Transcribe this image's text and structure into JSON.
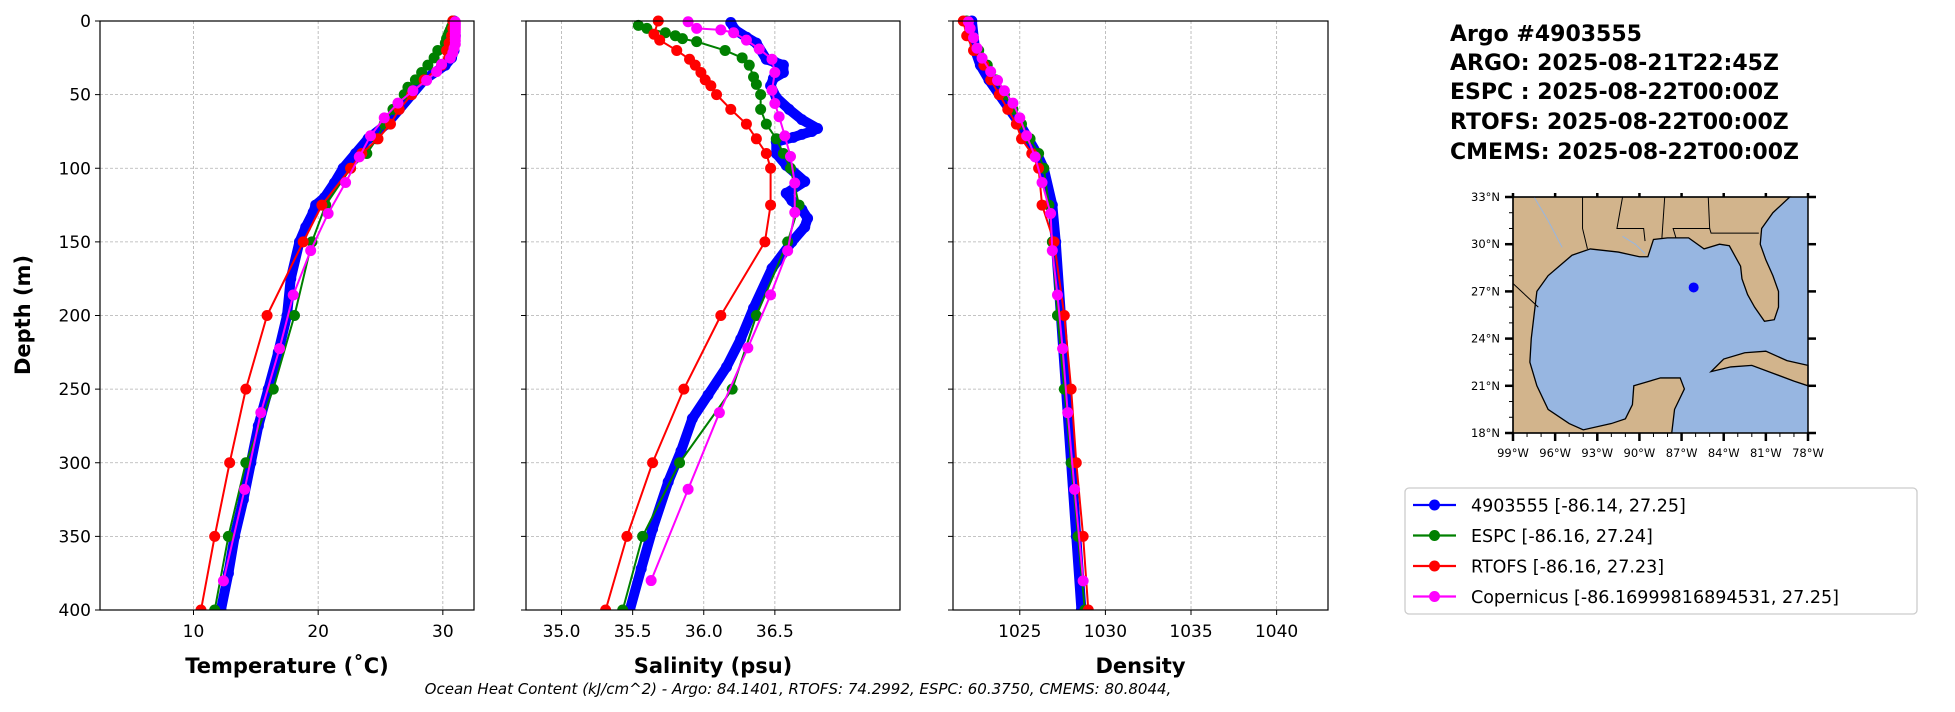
{
  "title_lines": [
    "Argo #4903555",
    "ARGO: 2025-08-21T22:45Z",
    "ESPC : 2025-08-22T00:00Z",
    "RTOFS: 2025-08-22T00:00Z",
    "CMEMS: 2025-08-22T00:00Z"
  ],
  "ylabel": "Depth (m)",
  "ohc_text": "Ocean Heat Content (kJ/cm^2) - Argo: 84.1401,  RTOFS: 74.2992,  ESPC: 60.3750,  CMEMS: 80.8044,",
  "legend": [
    {
      "label": "4903555 [-86.14, 27.25]",
      "color": "#0000ff"
    },
    {
      "label": "ESPC [-86.16, 27.24]",
      "color": "#008000"
    },
    {
      "label": "RTOFS [-86.16, 27.23]",
      "color": "#ff0000"
    },
    {
      "label": "Copernicus [-86.16999816894531, 27.25]",
      "color": "#ff00ff"
    }
  ],
  "map": {
    "lon_ticks": [
      "99°W",
      "96°W",
      "93°W",
      "90°W",
      "87°W",
      "84°W",
      "81°W",
      "78°W"
    ],
    "lon_values": [
      -99,
      -96,
      -93,
      -90,
      -87,
      -84,
      -81,
      -78
    ],
    "lat_ticks": [
      "33°N",
      "30°N",
      "27°N",
      "24°N",
      "21°N",
      "18°N"
    ],
    "lat_values": [
      33,
      30,
      27,
      24,
      21,
      18
    ],
    "lon_range": [
      -99,
      -78
    ],
    "lat_range": [
      18,
      33
    ],
    "point": {
      "lon": -86.14,
      "lat": 27.25,
      "color": "#0000ff"
    },
    "land_color": "#d2b48c",
    "water_color": "#97b6e1"
  },
  "chart_data": [
    {
      "type": "line",
      "xlabel": "Temperature (˚C)",
      "ylabel": "Depth (m)",
      "xlim": [
        2.5,
        32.5
      ],
      "ylim": [
        400,
        0
      ],
      "xticks": [
        "10",
        "20",
        "30"
      ],
      "xtick_values": [
        10,
        20,
        30
      ],
      "yticks": [
        "0",
        "50",
        "100",
        "150",
        "200",
        "250",
        "300",
        "350",
        "400"
      ],
      "ytick_values": [
        0,
        50,
        100,
        150,
        200,
        250,
        300,
        350,
        400
      ],
      "grid": true,
      "series": [
        {
          "name": "4903555",
          "color": "#0000ff",
          "depth": [
            0,
            10,
            20,
            25,
            30,
            40,
            50,
            60,
            70,
            80,
            90,
            100,
            110,
            120,
            125,
            130,
            140,
            150,
            175,
            200,
            225,
            250,
            275,
            300,
            325,
            350,
            375,
            400
          ],
          "values": [
            30.9,
            31.0,
            30.9,
            30.7,
            30.2,
            28.5,
            27.5,
            26.5,
            25.5,
            24.0,
            23.0,
            22.0,
            21.3,
            20.5,
            19.8,
            19.6,
            19.0,
            18.5,
            17.8,
            17.5,
            16.8,
            16.0,
            15.2,
            14.6,
            14.0,
            13.3,
            12.8,
            12.2
          ]
        },
        {
          "name": "ESPC",
          "color": "#008000",
          "depth": [
            0,
            2,
            4,
            6,
            8,
            10,
            12,
            15,
            20,
            25,
            30,
            35,
            40,
            45,
            50,
            60,
            70,
            80,
            90,
            100,
            125,
            150,
            200,
            250,
            300,
            350,
            400
          ],
          "values": [
            30.8,
            30.8,
            30.7,
            30.6,
            30.5,
            30.4,
            30.3,
            30.2,
            29.6,
            29.3,
            28.8,
            28.3,
            27.8,
            27.2,
            26.9,
            26.0,
            25.3,
            24.7,
            23.9,
            22.6,
            20.6,
            19.5,
            18.1,
            16.4,
            14.2,
            12.8,
            11.7
          ]
        },
        {
          "name": "RTOFS",
          "color": "#ff0000",
          "depth": [
            0,
            5,
            10,
            15,
            20,
            30,
            40,
            50,
            60,
            70,
            80,
            90,
            100,
            125,
            150,
            200,
            250,
            300,
            350,
            400
          ],
          "values": [
            30.8,
            30.8,
            30.7,
            30.5,
            30.3,
            29.9,
            28.5,
            27.5,
            26.5,
            25.8,
            24.8,
            23.5,
            22.6,
            20.3,
            18.8,
            15.9,
            14.2,
            12.9,
            11.7,
            10.6
          ]
        },
        {
          "name": "Copernicus",
          "color": "#ff00ff",
          "depth": [
            0.5,
            1.5,
            2.6,
            3.8,
            5,
            6.4,
            7.9,
            9.6,
            11.4,
            13.5,
            15.8,
            18.5,
            21.6,
            25.2,
            29.4,
            34.4,
            40.3,
            47.4,
            55.8,
            65.8,
            77.9,
            92.3,
            109.7,
            130.7,
            155.9,
            186.1,
            222.5,
            266.0,
            318.1,
            380.2
          ],
          "values": [
            31.0,
            31.0,
            31.0,
            31.0,
            31.0,
            31.0,
            31.0,
            31.0,
            31.0,
            31.0,
            31.0,
            30.9,
            30.8,
            30.6,
            29.9,
            29.5,
            28.7,
            27.6,
            26.4,
            25.3,
            24.2,
            23.3,
            22.2,
            20.8,
            19.4,
            18.0,
            16.9,
            15.4,
            14.1,
            12.4
          ]
        }
      ]
    },
    {
      "type": "line",
      "xlabel": "Salinity (psu)",
      "ylabel": "",
      "xlim": [
        34.75,
        37.38
      ],
      "ylim": [
        400,
        0
      ],
      "xticks": [
        "35.0",
        "35.5",
        "36.0",
        "36.5"
      ],
      "xtick_values": [
        35.0,
        35.5,
        36.0,
        36.5
      ],
      "yticks": [],
      "ytick_values": [
        0,
        50,
        100,
        150,
        200,
        250,
        300,
        350,
        400
      ],
      "grid": true,
      "series": [
        {
          "name": "4903555",
          "color": "#0000ff",
          "depth": [
            1,
            6,
            11,
            15,
            26,
            28,
            30,
            35,
            39,
            44,
            52,
            60,
            67,
            73,
            75,
            77,
            79,
            82,
            90,
            98,
            109,
            117,
            122,
            128,
            134,
            140,
            150,
            168,
            195,
            216,
            235,
            254,
            270,
            292,
            313,
            345,
            372,
            400
          ],
          "values": [
            36.19,
            36.22,
            36.3,
            36.37,
            36.44,
            36.5,
            36.56,
            36.56,
            36.49,
            36.47,
            36.51,
            36.6,
            36.69,
            36.8,
            36.76,
            36.69,
            36.63,
            36.51,
            36.51,
            36.58,
            36.71,
            36.58,
            36.62,
            36.69,
            36.73,
            36.71,
            36.62,
            36.48,
            36.35,
            36.26,
            36.16,
            36.03,
            35.92,
            35.84,
            35.75,
            35.64,
            35.56,
            35.48
          ]
        },
        {
          "name": "ESPC",
          "color": "#008000",
          "depth": [
            3,
            5,
            8,
            10,
            12,
            14,
            20,
            25,
            30,
            38,
            43,
            50,
            60,
            70,
            80,
            90,
            100,
            125,
            150,
            200,
            250,
            300,
            350,
            400
          ],
          "values": [
            35.54,
            35.6,
            35.73,
            35.8,
            35.85,
            35.95,
            36.15,
            36.27,
            36.32,
            36.35,
            36.37,
            36.4,
            36.4,
            36.44,
            36.51,
            36.56,
            36.61,
            36.67,
            36.59,
            36.37,
            36.2,
            35.83,
            35.57,
            35.43
          ]
        },
        {
          "name": "RTOFS",
          "color": "#ff0000",
          "depth": [
            0,
            9,
            13,
            20,
            26,
            30,
            35,
            40,
            44,
            50,
            60,
            70,
            80,
            90,
            100,
            125,
            150,
            200,
            250,
            300,
            350,
            400
          ],
          "values": [
            35.68,
            35.65,
            35.69,
            35.81,
            35.9,
            35.94,
            35.98,
            36.01,
            36.05,
            36.09,
            36.19,
            36.3,
            36.37,
            36.44,
            36.47,
            36.47,
            36.43,
            36.12,
            35.86,
            35.64,
            35.46,
            35.31
          ]
        },
        {
          "name": "Copernicus",
          "color": "#ff00ff",
          "depth": [
            0.5,
            5,
            6,
            8,
            13,
            19,
            26,
            35,
            47,
            56,
            65,
            78,
            92,
            110,
            130,
            156,
            186,
            222,
            266,
            318,
            380
          ],
          "values": [
            35.89,
            35.95,
            36.12,
            36.21,
            36.3,
            36.39,
            36.48,
            36.5,
            36.48,
            36.5,
            36.53,
            36.57,
            36.61,
            36.64,
            36.64,
            36.59,
            36.47,
            36.31,
            36.11,
            35.89,
            35.63
          ]
        }
      ]
    },
    {
      "type": "line",
      "xlabel": "Density",
      "ylabel": "",
      "xlim": [
        1021.1,
        1043.0
      ],
      "ylim": [
        400,
        0
      ],
      "xticks": [
        "1025",
        "1030",
        "1035",
        "1040"
      ],
      "xtick_values": [
        1025,
        1030,
        1035,
        1040
      ],
      "yticks": [],
      "ytick_values": [
        0,
        50,
        100,
        150,
        200,
        250,
        300,
        350,
        400
      ],
      "grid": true,
      "series": [
        {
          "name": "4903555",
          "color": "#0000ff",
          "depth": [
            0,
            20,
            30,
            40,
            50,
            60,
            70,
            80,
            90,
            100,
            125,
            150,
            200,
            250,
            300,
            350,
            400
          ],
          "values": [
            1022.2,
            1022.4,
            1022.7,
            1023.2,
            1023.8,
            1024.4,
            1025.0,
            1025.5,
            1026.0,
            1026.4,
            1026.9,
            1027.1,
            1027.4,
            1027.7,
            1028.0,
            1028.3,
            1028.6
          ]
        },
        {
          "name": "ESPC",
          "color": "#008000",
          "depth": [
            0,
            10,
            20,
            30,
            40,
            50,
            60,
            70,
            80,
            90,
            100,
            125,
            150,
            200,
            250,
            300,
            350,
            400
          ],
          "values": [
            1021.9,
            1022.1,
            1022.6,
            1023.1,
            1023.6,
            1024.1,
            1024.6,
            1025.1,
            1025.6,
            1026.1,
            1026.4,
            1026.7,
            1026.9,
            1027.2,
            1027.6,
            1028.0,
            1028.4,
            1028.8
          ]
        },
        {
          "name": "RTOFS",
          "color": "#ff0000",
          "depth": [
            0,
            10,
            20,
            30,
            40,
            50,
            60,
            70,
            80,
            90,
            100,
            125,
            150,
            200,
            250,
            300,
            350,
            400
          ],
          "values": [
            1021.7,
            1021.9,
            1022.3,
            1022.9,
            1023.3,
            1023.8,
            1024.3,
            1024.8,
            1025.1,
            1025.7,
            1026.1,
            1026.3,
            1027.0,
            1027.6,
            1028.0,
            1028.3,
            1028.7,
            1029.0
          ]
        },
        {
          "name": "Copernicus",
          "color": "#ff00ff",
          "depth": [
            0.5,
            5,
            11.4,
            18.5,
            25.2,
            34.4,
            40.3,
            47.4,
            55.8,
            65.8,
            77.9,
            92.3,
            109.7,
            130.7,
            155.9,
            186.1,
            222.5,
            266.0,
            318.1,
            380.2
          ],
          "values": [
            1022.0,
            1022.1,
            1022.3,
            1022.5,
            1022.8,
            1023.3,
            1023.7,
            1024.1,
            1024.6,
            1025.0,
            1025.4,
            1025.9,
            1026.3,
            1026.8,
            1026.9,
            1027.2,
            1027.5,
            1027.8,
            1028.2,
            1028.7
          ]
        }
      ]
    }
  ]
}
